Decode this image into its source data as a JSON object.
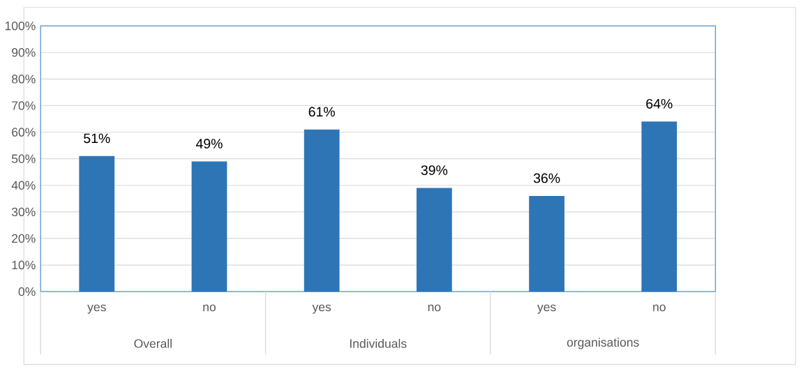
{
  "chart_data": {
    "type": "bar",
    "categories": [
      "yes",
      "no",
      "yes",
      "no",
      "yes",
      "no"
    ],
    "values": [
      51,
      49,
      61,
      39,
      36,
      64
    ],
    "value_labels": [
      "51%",
      "49%",
      "61%",
      "39%",
      "36%",
      "64%"
    ],
    "color": "#2e75b6",
    "ylim": [
      0,
      100
    ],
    "yticks": [
      {
        "value": 0,
        "label": "0%"
      },
      {
        "value": 10,
        "label": "10%"
      },
      {
        "value": 20,
        "label": "20%"
      },
      {
        "value": 30,
        "label": "30%"
      },
      {
        "value": 40,
        "label": "40%"
      },
      {
        "value": 50,
        "label": "50%"
      },
      {
        "value": 60,
        "label": "60%"
      },
      {
        "value": 70,
        "label": "70%"
      },
      {
        "value": 80,
        "label": "80%"
      },
      {
        "value": 90,
        "label": "90%"
      },
      {
        "value": 100,
        "label": "100%"
      }
    ],
    "grid": "y",
    "annotations": [
      "Overall",
      "Individuals",
      "organisations"
    ]
  }
}
